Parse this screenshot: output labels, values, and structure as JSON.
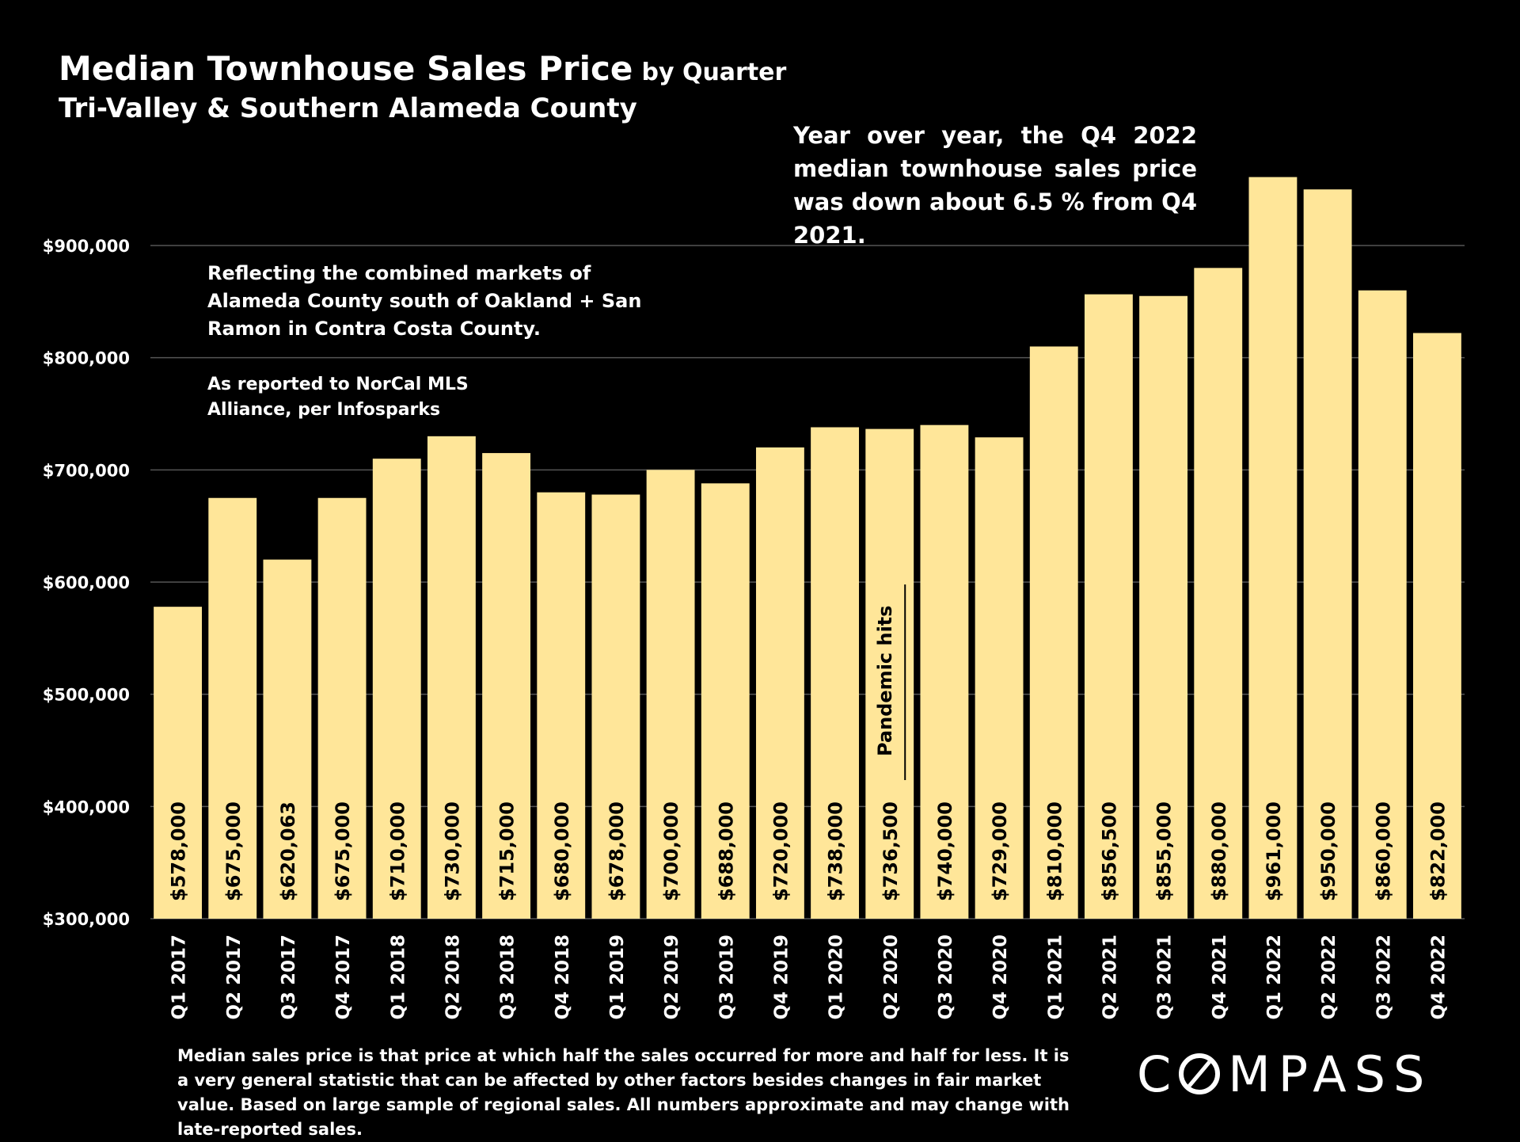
{
  "header": {
    "title": "Median Townhouse Sales Price",
    "title_suffix": "by Quarter",
    "subtitle": "Tri-Valley & Southern Alameda County"
  },
  "notes": {
    "yoy": "Year over year, the Q4 2022 median townhouse sales price was down about 6.5 % from Q4 2021.",
    "market": "Reflecting the combined markets of Alameda County south of Oakland + San Ramon in Contra Costa County.",
    "mls": "As reported to NorCal MLS Alliance, per Infosparks",
    "footnote": "Median sales price is that price at which half the sales occurred for more and half for less. It is a very general statistic that can be affected by other factors besides changes in fair market value. Based on large sample of regional sales. All numbers approximate and may change with late-reported sales."
  },
  "logo": {
    "text": "COMPASS"
  },
  "chart_data": {
    "type": "bar",
    "categories": [
      "Q1 2017",
      "Q2 2017",
      "Q3 2017",
      "Q4 2017",
      "Q1 2018",
      "Q2 2018",
      "Q3 2018",
      "Q4 2018",
      "Q1 2019",
      "Q2 2019",
      "Q3 2019",
      "Q4 2019",
      "Q1 2020",
      "Q2 2020",
      "Q3 2020",
      "Q4 2020",
      "Q1 2021",
      "Q2 2021",
      "Q3 2021",
      "Q4 2021",
      "Q1 2022",
      "Q2 2022",
      "Q3 2022",
      "Q4 2022"
    ],
    "values": [
      578000,
      675000,
      620063,
      675000,
      710000,
      730000,
      715000,
      680000,
      678000,
      700000,
      688000,
      720000,
      738000,
      736500,
      740000,
      729000,
      810000,
      856500,
      855000,
      880000,
      961000,
      950000,
      860000,
      822000
    ],
    "value_labels": [
      "$578,000",
      "$675,000",
      "$620,063",
      "$675,000",
      "$710,000",
      "$730,000",
      "$715,000",
      "$680,000",
      "$678,000",
      "$700,000",
      "$688,000",
      "$720,000",
      "$738,000",
      "$736,500",
      "$740,000",
      "$729,000",
      "$810,000",
      "$856,500",
      "$855,000",
      "$880,000",
      "$961,000",
      "$950,000",
      "$860,000",
      "$822,000"
    ],
    "ylim": [
      300000,
      900000
    ],
    "yticks": [
      300000,
      400000,
      500000,
      600000,
      700000,
      800000,
      900000
    ],
    "ytick_labels": [
      "$300,000",
      "$400,000",
      "$500,000",
      "$600,000",
      "$700,000",
      "$800,000",
      "$900,000"
    ],
    "grid": true,
    "bar_color": "#FFE699",
    "annotation": {
      "category": "Q2 2020",
      "text": "Pandemic hits"
    }
  }
}
